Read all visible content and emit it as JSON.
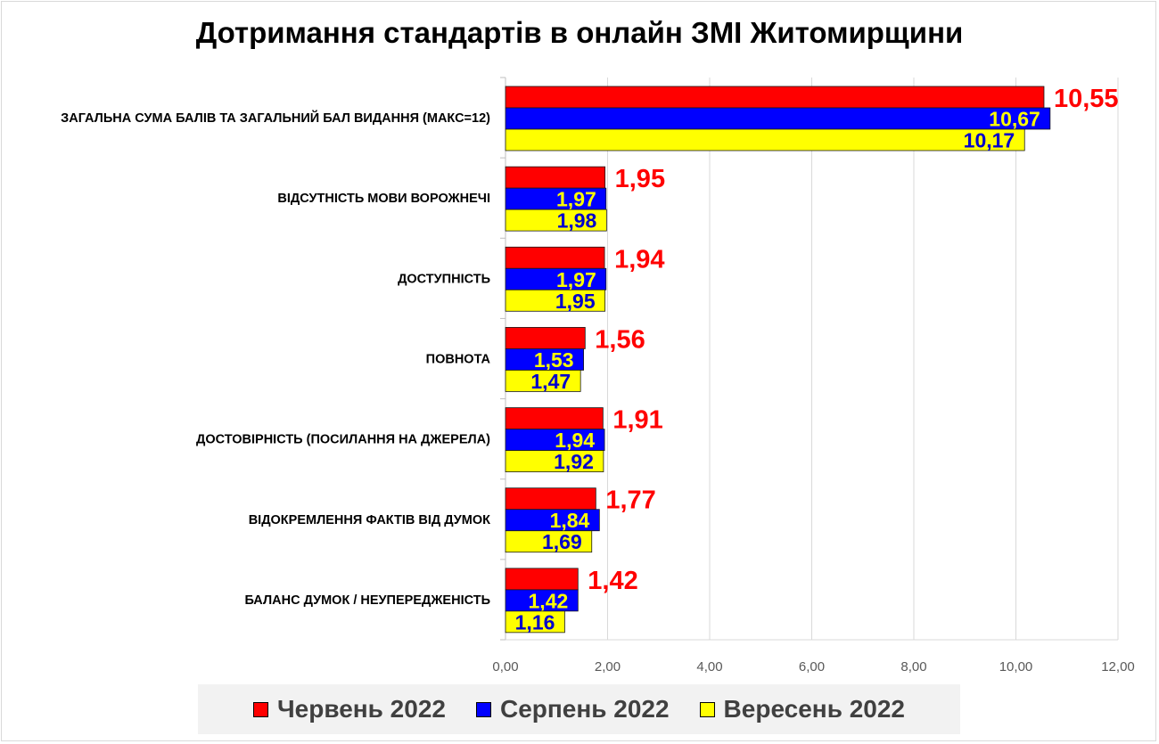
{
  "chart_data": {
    "type": "bar",
    "orientation": "horizontal",
    "title": "Дотримання стандартів в онлайн ЗМІ Житомирщини",
    "categories": [
      "ЗАГАЛЬНА СУМА БАЛІВ ТА ЗАГАЛЬНИЙ БАЛ ВИДАННЯ (МАКС=12)",
      "ВІДСУТНІСТЬ МОВИ ВОРОЖНЕЧІ",
      "ДОСТУПНІСТЬ",
      "ПОВНОТА",
      "ДОСТОВІРНІСТЬ (ПОСИЛАННЯ НА ДЖЕРЕЛА)",
      "ВІДОКРЕМЛЕННЯ ФАКТІВ ВІД ДУМОК",
      "БАЛАНС ДУМОК / НЕУПЕРЕДЖЕНІСТЬ"
    ],
    "series": [
      {
        "name": "Червень 2022",
        "color": "#ff0000",
        "label_color": "#ff0000",
        "values": [
          10.55,
          1.95,
          1.94,
          1.56,
          1.91,
          1.77,
          1.42
        ],
        "labels": [
          "10,55",
          "1,95",
          "1,94",
          "1,56",
          "1,91",
          "1,77",
          "1,42"
        ]
      },
      {
        "name": "Серпень 2022",
        "color": "#0000ff",
        "label_color": "#ffff00",
        "values": [
          10.67,
          1.97,
          1.97,
          1.53,
          1.94,
          1.84,
          1.42
        ],
        "labels": [
          "10,67",
          "1,97",
          "1,97",
          "1,53",
          "1,94",
          "1,84",
          "1,42"
        ]
      },
      {
        "name": "Вересень 2022",
        "color": "#ffff00",
        "label_color": "#0000cc",
        "values": [
          10.17,
          1.98,
          1.95,
          1.47,
          1.92,
          1.69,
          1.16
        ],
        "labels": [
          "10,17",
          "1,98",
          "1,95",
          "1,47",
          "1,92",
          "1,69",
          "1,16"
        ]
      }
    ],
    "xlim": [
      0,
      12
    ],
    "xticks": [
      0,
      2,
      4,
      6,
      8,
      10,
      12
    ],
    "xtick_labels": [
      "0,00",
      "2,00",
      "4,00",
      "6,00",
      "8,00",
      "10,00",
      "12,00"
    ],
    "grid": true,
    "legend": "bottom"
  }
}
